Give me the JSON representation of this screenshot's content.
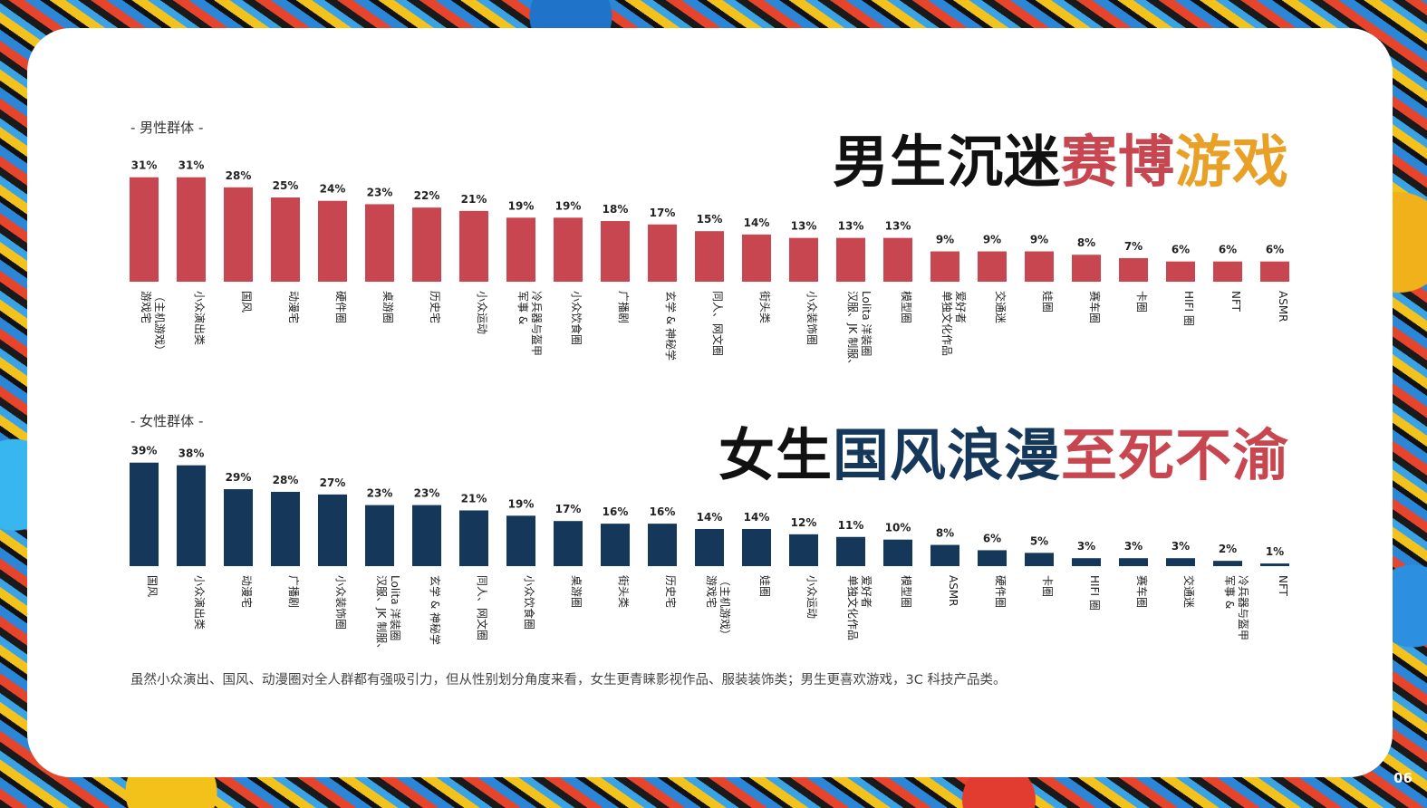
{
  "slide": {
    "page_number": "06",
    "footnote": "虽然小众演出、国风、动漫圈对全人群都有强吸引力，但从性别划分角度来看，女生更青睐影视作品、服装装饰类；男生更喜欢游戏，3C 科技产品类。"
  },
  "male": {
    "label": "- 男性群体 -",
    "headline": {
      "black": "男生沉迷",
      "red": "赛博",
      "orange": "游戏"
    }
  },
  "female": {
    "label": "- 女性群体 -",
    "headline": {
      "black": "女生",
      "navy": "国风浪漫",
      "red": "至死不渝"
    }
  },
  "colors": {
    "male_bar": "#c8464f",
    "female_bar": "#15385a",
    "headline_red": "#c8464f",
    "headline_orange": "#e8a126",
    "headline_navy": "#15385a"
  },
  "chart_data": [
    {
      "type": "bar",
      "title": "- 男性群体 -",
      "categories": [
        "游戏宅（主机游戏）",
        "小众演出类",
        "国风",
        "动漫宅",
        "硬件圈",
        "桌游圈",
        "历史宅",
        "小众运动",
        "军事&冷兵器与盔甲",
        "小众饮食圈",
        "广播剧",
        "玄学&神秘学",
        "同人、网文圈",
        "街头类",
        "小众装饰圈",
        "汉服、JK制服、Lolita洋装圈",
        "模型圈",
        "单独文化作品爱好者",
        "交通迷",
        "娃圈",
        "赛车圈",
        "卡圈",
        "HIFI圈",
        "NFT",
        "ASMR"
      ],
      "values": [
        31,
        31,
        28,
        25,
        24,
        23,
        22,
        21,
        19,
        19,
        18,
        17,
        15,
        14,
        13,
        13,
        13,
        9,
        9,
        9,
        8,
        7,
        6,
        6,
        6
      ],
      "value_labels": [
        "31%",
        "31%",
        "28%",
        "25%",
        "24%",
        "23%",
        "22%",
        "21%",
        "19%",
        "19%",
        "18%",
        "17%",
        "15%",
        "14%",
        "13%",
        "13%",
        "13%",
        "9%",
        "9%",
        "9%",
        "8%",
        "7%",
        "6%",
        "6%",
        "6%"
      ],
      "label_lines": [
        [
          "游戏宅",
          "（主机游戏）"
        ],
        [
          "小众演出类"
        ],
        [
          "国风"
        ],
        [
          "动漫宅"
        ],
        [
          "硬件圈"
        ],
        [
          "桌游圈"
        ],
        [
          "历史宅"
        ],
        [
          "小众运动"
        ],
        [
          "军事 &",
          "冷兵器与盔甲"
        ],
        [
          "小众饮食圈"
        ],
        [
          "广播剧"
        ],
        [
          "玄学 & 神秘学"
        ],
        [
          "同人、网文圈"
        ],
        [
          "街头类"
        ],
        [
          "小众装饰圈"
        ],
        [
          "汉服、JK 制服、",
          "Lolita 洋装圈"
        ],
        [
          "模型圈"
        ],
        [
          "单独文化作品",
          "爱好者"
        ],
        [
          "交通迷"
        ],
        [
          "娃圈"
        ],
        [
          "赛车圈"
        ],
        [
          "卡圈"
        ],
        [
          "HIFI 圈"
        ],
        [
          "NFT"
        ],
        [
          "ASMR"
        ]
      ],
      "color": "#c8464f"
    },
    {
      "type": "bar",
      "title": "- 女性群体 -",
      "categories": [
        "国风",
        "小众演出类",
        "动漫宅",
        "广播剧",
        "小众装饰圈",
        "汉服、JK制服、Lolita洋装圈",
        "玄学&神秘学",
        "同人、网文圈",
        "小众饮食圈",
        "桌游圈",
        "街头类",
        "历史宅",
        "游戏宅（主机游戏）",
        "娃圈",
        "小众运动",
        "单独文化作品爱好者",
        "模型圈",
        "ASMR",
        "硬件圈",
        "卡圈",
        "HIFI圈",
        "赛车圈",
        "交通迷",
        "军事&冷兵器与盔甲",
        "NFT"
      ],
      "values": [
        39,
        38,
        29,
        28,
        27,
        23,
        23,
        21,
        19,
        17,
        16,
        16,
        14,
        14,
        12,
        11,
        10,
        8,
        6,
        5,
        3,
        3,
        3,
        2,
        1
      ],
      "value_labels": [
        "39%",
        "38%",
        "29%",
        "28%",
        "27%",
        "23%",
        "23%",
        "21%",
        "19%",
        "17%",
        "16%",
        "16%",
        "14%",
        "14%",
        "12%",
        "11%",
        "10%",
        "8%",
        "6%",
        "5%",
        "3%",
        "3%",
        "3%",
        "2%",
        "1%"
      ],
      "label_lines": [
        [
          "国风"
        ],
        [
          "小众演出类"
        ],
        [
          "动漫宅"
        ],
        [
          "广播剧"
        ],
        [
          "小众装饰圈"
        ],
        [
          "汉服、JK 制服、",
          "Lolita 洋装圈"
        ],
        [
          "玄学 & 神秘学"
        ],
        [
          "同人、网文圈"
        ],
        [
          "小众饮食圈"
        ],
        [
          "桌游圈"
        ],
        [
          "街头类"
        ],
        [
          "历史宅"
        ],
        [
          "游戏宅",
          "（主机游戏）"
        ],
        [
          "娃圈"
        ],
        [
          "小众运动"
        ],
        [
          "单独文化作品",
          "爱好者"
        ],
        [
          "模型圈"
        ],
        [
          "ASMR"
        ],
        [
          "硬件圈"
        ],
        [
          "卡圈"
        ],
        [
          "HIFI 圈"
        ],
        [
          "赛车圈"
        ],
        [
          "交通迷"
        ],
        [
          "军事 &",
          "冷兵器与盔甲"
        ],
        [
          "NFT"
        ]
      ],
      "color": "#15385a"
    }
  ]
}
